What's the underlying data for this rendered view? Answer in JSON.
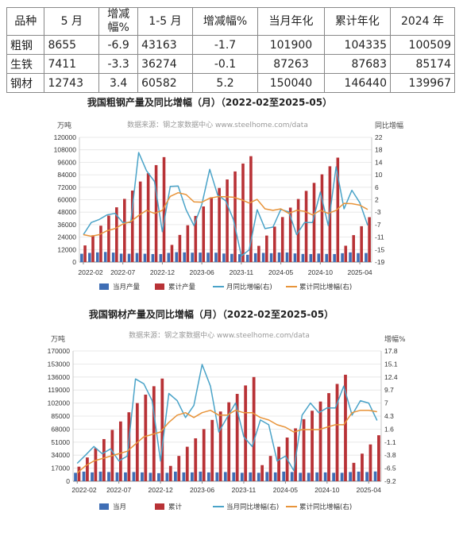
{
  "summary_table": {
    "headers": [
      "品种",
      "5 月",
      "增减幅%",
      "1-5 月",
      "增减幅%",
      "当月年化",
      "累计年化",
      "2024 年"
    ],
    "rows": [
      [
        "粗钢",
        "8655",
        "-6.9",
        "43163",
        "-1.7",
        "101900",
        "104335",
        "100509"
      ],
      [
        "生铁",
        "7411",
        "-3.3",
        "36274",
        "-0.1",
        "87263",
        "87683",
        "85174"
      ],
      [
        "钢材",
        "12743",
        "3.4",
        "60582",
        "5.2",
        "150040",
        "146440",
        "139967"
      ]
    ]
  },
  "chart_data": [
    {
      "type": "bar",
      "title": "我国粗钢产量及同比增幅（月）（2022-02至2025-05）",
      "source": "数据来源：钢之家数据中心 www.steelhome.com/data",
      "y_left_unit": "万吨",
      "y_right_unit": "同比增幅",
      "ylim_left": [
        0,
        120000
      ],
      "ylim_right": [
        -19,
        22
      ],
      "left_ticks": [
        "0",
        "12000",
        "24000",
        "36000",
        "48000",
        "60000",
        "72000",
        "84000",
        "96000",
        "108000",
        "120000"
      ],
      "right_ticks": [
        "-19",
        "-15",
        "-11",
        "-7",
        "-3",
        "2",
        "6",
        "10",
        "14",
        "18",
        "22"
      ],
      "x_labels": [
        "2022-02",
        "2022-07",
        "2022-12",
        "2023-06",
        "2023-11",
        "2024-05",
        "2024-10",
        "2025-04"
      ],
      "legend": [
        "当月产量",
        "累计产量",
        "月同比增幅(右)",
        "累计同比增幅(右)"
      ],
      "colors": {
        "monthly": "#3f6eb5",
        "cumulative": "#b83236",
        "monthly_yoy": "#4aa3c8",
        "cumulative_yoy": "#e8943a"
      },
      "x": [
        "2022-02",
        "2022-03",
        "2022-04",
        "2022-05",
        "2022-06",
        "2022-07",
        "2022-08",
        "2022-09",
        "2022-10",
        "2022-11",
        "2022-12",
        "2023-02",
        "2023-03",
        "2023-04",
        "2023-05",
        "2023-06",
        "2023-07",
        "2023-08",
        "2023-09",
        "2023-10",
        "2023-11",
        "2023-12",
        "2024-02",
        "2024-03",
        "2024-04",
        "2024-05",
        "2024-06",
        "2024-07",
        "2024-08",
        "2024-09",
        "2024-10",
        "2024-11",
        "2024-12",
        "2025-02",
        "2025-03",
        "2025-04",
        "2025-05"
      ],
      "series": [
        {
          "name": "当月产量",
          "values": [
            8000,
            8800,
            9300,
            9700,
            9100,
            8100,
            8000,
            8700,
            8000,
            7700,
            7700,
            8800,
            9500,
            9300,
            9000,
            9100,
            9000,
            9000,
            8200,
            7900,
            7600,
            7000,
            8500,
            8800,
            8500,
            9200,
            9200,
            8300,
            7800,
            7700,
            8200,
            7800,
            7700,
            8500,
            9300,
            8600,
            8700
          ]
        },
        {
          "name": "累计产量",
          "values": [
            16000,
            25800,
            35000,
            44700,
            52700,
            60800,
            68800,
            77500,
            85500,
            93300,
            101000,
            16500,
            26100,
            35400,
            44400,
            53500,
            62400,
            71300,
            79500,
            87200,
            94800,
            101900,
            15600,
            25500,
            34100,
            43300,
            52400,
            60700,
            68500,
            76200,
            84400,
            92200,
            100500,
            15700,
            25900,
            34500,
            43200
          ]
        },
        {
          "name": "月同比增幅(右)",
          "values": [
            -10,
            -6,
            -5,
            -3.5,
            -3,
            -6,
            -6,
            17,
            11,
            7.5,
            -9,
            5.9,
            6,
            -1.8,
            -7,
            0,
            11.5,
            3,
            1.2,
            -5,
            -17,
            -15,
            -1.8,
            -8,
            -7.5,
            -1.7,
            -2.5,
            -10,
            -6,
            -6,
            4,
            -7,
            12.3,
            -1.5,
            4.6,
            0.5,
            -6.9
          ]
        },
        {
          "name": "累计同比增幅(右)",
          "values": [
            -10,
            -10.5,
            -10,
            -8.7,
            -8,
            -6.5,
            -5.7,
            -3.7,
            -2,
            -3,
            -2,
            2.6,
            3.8,
            3.2,
            0.8,
            0.7,
            2,
            2.5,
            2.5,
            2.3,
            1.5,
            0.4,
            1.6,
            -1.5,
            -2,
            -1.5,
            -3,
            -2,
            -2.3,
            -3.5,
            -2,
            -3,
            -2,
            0.3,
            0.2,
            -0.3,
            -1.7
          ]
        }
      ]
    },
    {
      "type": "bar",
      "title": "我国钢材产量及同比增幅（月）（2022-02至2025-05）",
      "source": "数据来源：钢之家数据中心 www.steelhome.com/data",
      "y_left_unit": "万吨",
      "y_right_unit": "增幅%",
      "ylim_left": [
        0,
        170000
      ],
      "ylim_right": [
        -9.2,
        17.8
      ],
      "left_ticks": [
        "0",
        "17000",
        "34000",
        "51000",
        "68000",
        "85000",
        "102000",
        "119000",
        "136000",
        "153000",
        "170000"
      ],
      "right_ticks": [
        "-9.2",
        "-6.5",
        "-3.8",
        "-1.1",
        "1.6",
        "4.3",
        "7",
        "9.7",
        "12.4",
        "15.1",
        "17.8"
      ],
      "x_labels": [
        "2022-02",
        "2022-07",
        "2022-12",
        "2023-06",
        "2023-11",
        "2024-05",
        "2024-10",
        "2025-04"
      ],
      "legend": [
        "当月",
        "累计",
        "当月同比增幅(右)",
        "累计同比增幅(右)"
      ],
      "colors": {
        "monthly": "#3f6eb5",
        "cumulative": "#b83236",
        "monthly_yoy": "#4aa3c8",
        "cumulative_yoy": "#e8943a"
      },
      "x": [
        "2022-02",
        "2022-03",
        "2022-04",
        "2022-05",
        "2022-06",
        "2022-07",
        "2022-08",
        "2022-09",
        "2022-10",
        "2022-11",
        "2022-12",
        "2023-02",
        "2023-03",
        "2023-04",
        "2023-05",
        "2023-06",
        "2023-07",
        "2023-08",
        "2023-09",
        "2023-10",
        "2023-11",
        "2023-12",
        "2024-02",
        "2024-03",
        "2024-04",
        "2024-05",
        "2024-06",
        "2024-07",
        "2024-08",
        "2024-09",
        "2024-10",
        "2024-11",
        "2024-12",
        "2025-02",
        "2025-03",
        "2025-04",
        "2025-05"
      ],
      "series": [
        {
          "name": "当月",
          "values": [
            11000,
            12500,
            11500,
            12500,
            12000,
            11500,
            11500,
            12000,
            11500,
            11000,
            10500,
            11000,
            12500,
            11500,
            11500,
            12500,
            11500,
            11500,
            12000,
            11500,
            11000,
            11500,
            11000,
            12000,
            11500,
            12500,
            12000,
            11000,
            11000,
            11500,
            11500,
            11000,
            11000,
            12000,
            12500,
            12000,
            12700
          ]
        },
        {
          "name": "累计",
          "values": [
            19000,
            31000,
            43000,
            55000,
            67000,
            78000,
            90000,
            102000,
            113000,
            124000,
            134000,
            20000,
            33000,
            45000,
            56000,
            68000,
            80000,
            91000,
            103000,
            114000,
            125000,
            136000,
            21000,
            33000,
            45000,
            57000,
            69000,
            81000,
            92000,
            104000,
            115000,
            127000,
            139000,
            24000,
            36000,
            48000,
            60000
          ]
        },
        {
          "name": "当月同比增幅(右)",
          "values": [
            -5.5,
            -3.8,
            -2,
            -3.5,
            -2.5,
            -5,
            -4,
            12,
            11,
            7.5,
            -5,
            9,
            7.5,
            4,
            6.5,
            15,
            10.5,
            1,
            4,
            7,
            0,
            -2,
            3.5,
            2.5,
            -5,
            -4,
            -7,
            4.5,
            7,
            5,
            6,
            6,
            10.5,
            4.5,
            7.5,
            7,
            3.4
          ]
        },
        {
          "name": "累计同比增幅(右)",
          "values": [
            -7.5,
            -6,
            -5,
            -4.5,
            -4,
            -3.5,
            -3,
            -1.5,
            0,
            0.5,
            1,
            3,
            4.5,
            5,
            4,
            5,
            5.5,
            4.5,
            4.5,
            5.5,
            5,
            5,
            4,
            3.5,
            2.5,
            2,
            1,
            1.5,
            1.5,
            1.5,
            2,
            2.5,
            2.5,
            5,
            5.5,
            5.5,
            5.2
          ]
        }
      ]
    }
  ]
}
